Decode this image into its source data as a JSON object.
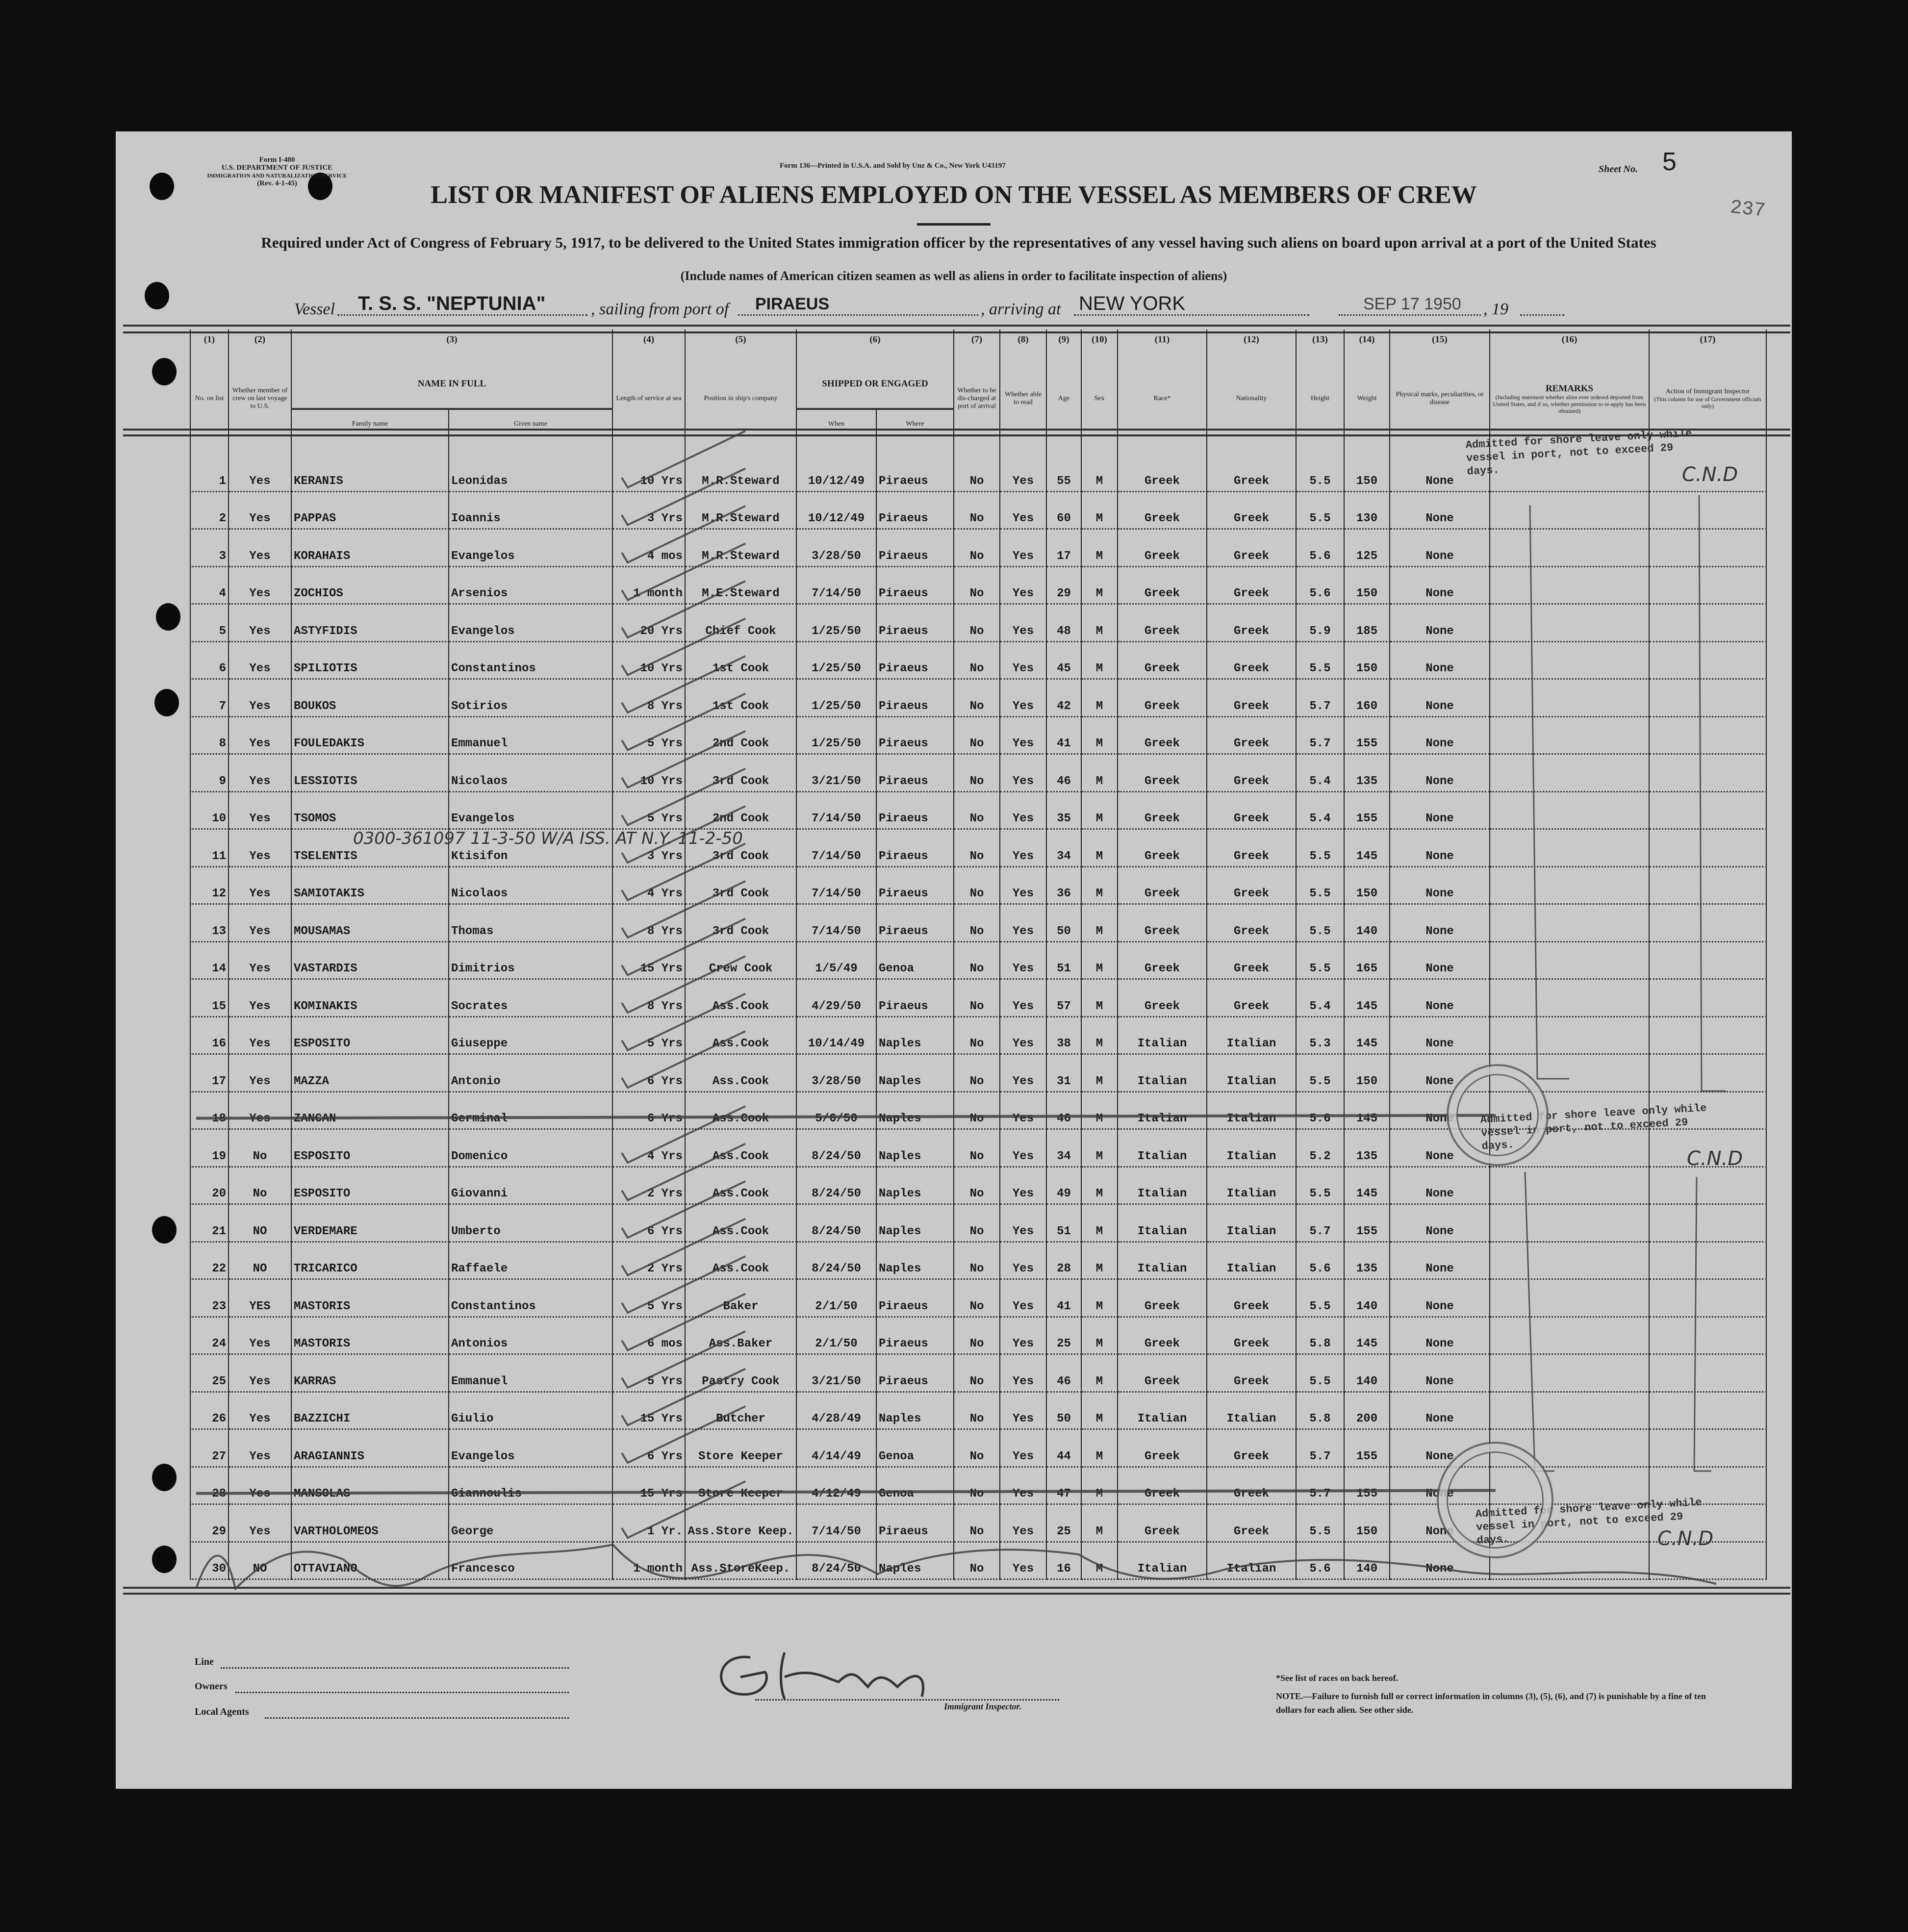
{
  "form_id": {
    "form": "Form I-480",
    "department": "U.S. DEPARTMENT OF JUSTICE",
    "service": "IMMIGRATION AND NATURALIZATION SERVICE",
    "rev": "(Rev. 4-1-45)"
  },
  "printer_line": "Form 136—Printed in U.S.A. and Sold by Unz & Co., New York U43197",
  "sheet_label": "Sheet No.",
  "sheet_number": "5",
  "page_number": "237",
  "title": "LIST OR MANIFEST OF ALIENS EMPLOYED ON THE VESSEL AS MEMBERS OF CREW",
  "subtitle": "Required under Act of Congress of February 5, 1917, to be delivered to the United States immigration officer by the representatives of any vessel having such aliens on board upon arrival at a port of the United States",
  "include_note": "(Include names of American citizen seamen as well as aliens in order to facilitate inspection of aliens)",
  "voyage": {
    "vessel_label": "Vessel",
    "vessel": "T. S. S. \"NEPTUNIA\"",
    "sailing_label": ", sailing from port of",
    "port_from": "PIRAEUS",
    "arriving_label": ", arriving at",
    "port_to": "NEW YORK",
    "date": "SEP 17 1950",
    "year_label": ", 19"
  },
  "columns": {
    "numbers": [
      "(1)",
      "(2)",
      "(3)",
      "(4)",
      "(5)",
      "(6)",
      "(7)",
      "(8)",
      "(9)",
      "(10)",
      "(11)",
      "(12)",
      "(13)",
      "(14)",
      "(15)",
      "(16)",
      "(17)"
    ],
    "no": "No. on list",
    "crew": "Whether member of crew on last voyage to U.S.",
    "name": "NAME IN FULL",
    "family": "Family name",
    "given": "Given name",
    "length": "Length of service at sea",
    "position": "Position in ship's company",
    "shipped": "SHIPPED OR ENGAGED",
    "when": "When",
    "where": "Where",
    "discharged": "Whether to be dis-charged at port of arrival",
    "read": "Whether able to read",
    "age": "Age",
    "sex": "Sex",
    "race": "Race*",
    "nationality": "Nationality",
    "height": "Height",
    "weight": "Weight",
    "marks": "Physical marks, peculiarities, or disease",
    "remarks": "REMARKS",
    "remarks_note": "(Including statement whether alien ever ordered deported from United States, and if so, whether permission to re-apply has been obtained)",
    "action": "Action of Immigrant Inspector",
    "action_note": "(This column for use of Government officials only)"
  },
  "rows": [
    [
      "1",
      "Yes",
      "KERANIS",
      "Leonidas",
      "10 Yrs",
      "M.R.Steward",
      "10/12/49",
      "Piraeus",
      "No",
      "Yes",
      "55",
      "M",
      "Greek",
      "Greek",
      "5.5",
      "150",
      "None"
    ],
    [
      "2",
      "Yes",
      "PAPPAS",
      "Ioannis",
      "3 Yrs",
      "M.R.Steward",
      "10/12/49",
      "Piraeus",
      "No",
      "Yes",
      "60",
      "M",
      "Greek",
      "Greek",
      "5.5",
      "130",
      "None"
    ],
    [
      "3",
      "Yes",
      "KORAHAIS",
      "Evangelos",
      "4 mos",
      "M.R.Steward",
      "3/28/50",
      "Piraeus",
      "No",
      "Yes",
      "17",
      "M",
      "Greek",
      "Greek",
      "5.6",
      "125",
      "None"
    ],
    [
      "4",
      "Yes",
      "ZOCHIOS",
      "Arsenios",
      "1 month",
      "M.E.Steward",
      "7/14/50",
      "Piraeus",
      "No",
      "Yes",
      "29",
      "M",
      "Greek",
      "Greek",
      "5.6",
      "150",
      "None"
    ],
    [
      "5",
      "Yes",
      "ASTYFIDIS",
      "Evangelos",
      "20 Yrs",
      "Chief Cook",
      "1/25/50",
      "Piraeus",
      "No",
      "Yes",
      "48",
      "M",
      "Greek",
      "Greek",
      "5.9",
      "185",
      "None"
    ],
    [
      "6",
      "Yes",
      "SPILIOTIS",
      "Constantinos",
      "10 Yrs",
      "1st Cook",
      "1/25/50",
      "Piraeus",
      "No",
      "Yes",
      "45",
      "M",
      "Greek",
      "Greek",
      "5.5",
      "150",
      "None"
    ],
    [
      "7",
      "Yes",
      "BOUKOS",
      "Sotirios",
      "8 Yrs",
      "1st Cook",
      "1/25/50",
      "Piraeus",
      "No",
      "Yes",
      "42",
      "M",
      "Greek",
      "Greek",
      "5.7",
      "160",
      "None"
    ],
    [
      "8",
      "Yes",
      "FOULEDAKIS",
      "Emmanuel",
      "5 Yrs",
      "2nd Cook",
      "1/25/50",
      "Piraeus",
      "No",
      "Yes",
      "41",
      "M",
      "Greek",
      "Greek",
      "5.7",
      "155",
      "None"
    ],
    [
      "9",
      "Yes",
      "LESSIOTIS",
      "Nicolaos",
      "10 Yrs",
      "3rd Cook",
      "3/21/50",
      "Piraeus",
      "No",
      "Yes",
      "46",
      "M",
      "Greek",
      "Greek",
      "5.4",
      "135",
      "None"
    ],
    [
      "10",
      "Yes",
      "TSOMOS",
      "Evangelos",
      "5 Yrs",
      "2nd Cook",
      "7/14/50",
      "Piraeus",
      "No",
      "Yes",
      "35",
      "M",
      "Greek",
      "Greek",
      "5.4",
      "155",
      "None"
    ],
    [
      "11",
      "Yes",
      "TSELENTIS",
      "Ktisifon",
      "3 Yrs",
      "3rd Cook",
      "7/14/50",
      "Piraeus",
      "No",
      "Yes",
      "34",
      "M",
      "Greek",
      "Greek",
      "5.5",
      "145",
      "None"
    ],
    [
      "12",
      "Yes",
      "SAMIOTAKIS",
      "Nicolaos",
      "4 Yrs",
      "3rd Cook",
      "7/14/50",
      "Piraeus",
      "No",
      "Yes",
      "36",
      "M",
      "Greek",
      "Greek",
      "5.5",
      "150",
      "None"
    ],
    [
      "13",
      "Yes",
      "MOUSAMAS",
      "Thomas",
      "8 Yrs",
      "3rd Cook",
      "7/14/50",
      "Piraeus",
      "No",
      "Yes",
      "50",
      "M",
      "Greek",
      "Greek",
      "5.5",
      "140",
      "None"
    ],
    [
      "14",
      "Yes",
      "VASTARDIS",
      "Dimitrios",
      "15 Yrs",
      "Crew Cook",
      "1/5/49",
      "Genoa",
      "No",
      "Yes",
      "51",
      "M",
      "Greek",
      "Greek",
      "5.5",
      "165",
      "None"
    ],
    [
      "15",
      "Yes",
      "KOMINAKIS",
      "Socrates",
      "8 Yrs",
      "Ass.Cook",
      "4/29/50",
      "Piraeus",
      "No",
      "Yes",
      "57",
      "M",
      "Greek",
      "Greek",
      "5.4",
      "145",
      "None"
    ],
    [
      "16",
      "Yes",
      "ESPOSITO",
      "Giuseppe",
      "5 Yrs",
      "Ass.Cook",
      "10/14/49",
      "Naples",
      "No",
      "Yes",
      "38",
      "M",
      "Italian",
      "Italian",
      "5.3",
      "145",
      "None"
    ],
    [
      "17",
      "Yes",
      "MAZZA",
      "Antonio",
      "6 Yrs",
      "Ass.Cook",
      "3/28/50",
      "Naples",
      "No",
      "Yes",
      "31",
      "M",
      "Italian",
      "Italian",
      "5.5",
      "150",
      "None"
    ],
    [
      "18",
      "Yes",
      "ZANCAN",
      "Germinal",
      "6 Yrs",
      "Ass.Cook",
      "5/6/50",
      "Naples",
      "No",
      "Yes",
      "46",
      "M",
      "Italian",
      "Italian",
      "5.6",
      "145",
      "None"
    ],
    [
      "19",
      "No",
      "ESPOSITO",
      "Domenico",
      "4 Yrs",
      "Ass.Cook",
      "8/24/50",
      "Naples",
      "No",
      "Yes",
      "34",
      "M",
      "Italian",
      "Italian",
      "5.2",
      "135",
      "None"
    ],
    [
      "20",
      "No",
      "ESPOSITO",
      "Giovanni",
      "2 Yrs",
      "Ass.Cook",
      "8/24/50",
      "Naples",
      "No",
      "Yes",
      "49",
      "M",
      "Italian",
      "Italian",
      "5.5",
      "145",
      "None"
    ],
    [
      "21",
      "NO",
      "VERDEMARE",
      "Umberto",
      "6 Yrs",
      "Ass.Cook",
      "8/24/50",
      "Naples",
      "No",
      "Yes",
      "51",
      "M",
      "Italian",
      "Italian",
      "5.7",
      "155",
      "None"
    ],
    [
      "22",
      "NO",
      "TRICARICO",
      "Raffaele",
      "2 Yrs",
      "Ass.Cook",
      "8/24/50",
      "Naples",
      "No",
      "Yes",
      "28",
      "M",
      "Italian",
      "Italian",
      "5.6",
      "135",
      "None"
    ],
    [
      "23",
      "YES",
      "MASTORIS",
      "Constantinos",
      "5 Yrs",
      "Baker",
      "2/1/50",
      "Piraeus",
      "No",
      "Yes",
      "41",
      "M",
      "Greek",
      "Greek",
      "5.5",
      "140",
      "None"
    ],
    [
      "24",
      "Yes",
      "MASTORIS",
      "Antonios",
      "6 mos",
      "Ass.Baker",
      "2/1/50",
      "Piraeus",
      "No",
      "Yes",
      "25",
      "M",
      "Greek",
      "Greek",
      "5.8",
      "145",
      "None"
    ],
    [
      "25",
      "Yes",
      "KARRAS",
      "Emmanuel",
      "5 Yrs",
      "Pastry Cook",
      "3/21/50",
      "Piraeus",
      "No",
      "Yes",
      "46",
      "M",
      "Greek",
      "Greek",
      "5.5",
      "140",
      "None"
    ],
    [
      "26",
      "Yes",
      "BAZZICHI",
      "Giulio",
      "15 Yrs",
      "Butcher",
      "4/28/49",
      "Naples",
      "No",
      "Yes",
      "50",
      "M",
      "Italian",
      "Italian",
      "5.8",
      "200",
      "None"
    ],
    [
      "27",
      "Yes",
      "ARAGIANNIS",
      "Evangelos",
      "6 Yrs",
      "Store Keeper",
      "4/14/49",
      "Genoa",
      "No",
      "Yes",
      "44",
      "M",
      "Greek",
      "Greek",
      "5.7",
      "155",
      "None"
    ],
    [
      "28",
      "Yes",
      "MANSOLAS",
      "Giannoulis",
      "15 Yrs",
      "Store Keeper",
      "4/12/49",
      "Genoa",
      "No",
      "Yes",
      "47",
      "M",
      "Greek",
      "Greek",
      "5.7",
      "155",
      "None"
    ],
    [
      "29",
      "Yes",
      "VARTHOLOMEOS",
      "George",
      "1 Yr.",
      "Ass.Store Keep.",
      "7/14/50",
      "Piraeus",
      "No",
      "Yes",
      "25",
      "M",
      "Greek",
      "Greek",
      "5.5",
      "150",
      "None"
    ],
    [
      "30",
      "NO",
      "OTTAVIANO",
      "Francesco",
      "1 month",
      "Ass.StoreKeep.",
      "8/24/50",
      "Naples",
      "No",
      "Yes",
      "16",
      "M",
      "Italian",
      "Italian",
      "5.6",
      "140",
      "None"
    ]
  ],
  "struck_rows": [
    18,
    28
  ],
  "annotations": {
    "row11_note": "0300-361097   11-3-50   W/A ISS. AT N.Y. 11-2-50",
    "remarks_stamp": "Admitted for shore leave only while vessel in port, not to exceed 29 days.",
    "action_mark": "C.N.D"
  },
  "footer": {
    "line_label": "Line",
    "owners_label": "Owners",
    "agents_label": "Local Agents",
    "inspector_label": "Immigrant Inspector.",
    "races_note": "*See list of races on back hereof.",
    "note": "NOTE.—Failure to furnish full or correct information in columns (3), (5), (6), and (7) is punishable by a fine of ten dollars for each alien. See other side."
  }
}
